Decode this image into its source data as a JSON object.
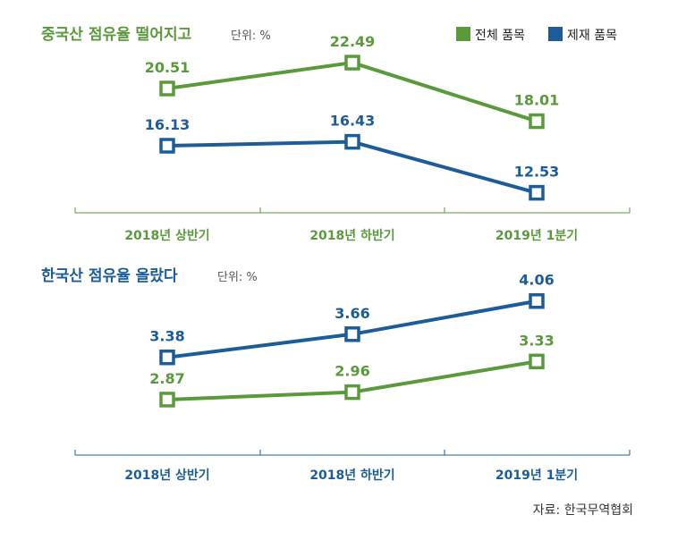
{
  "legend": [
    {
      "label": "전체 품목",
      "color": "#5a9a3c"
    },
    {
      "label": "제재 품목",
      "color": "#1c5d99"
    }
  ],
  "source": "자료: 한국무역협회",
  "chart_data": [
    {
      "type": "line",
      "title": "중국산 점유율 떨어지고",
      "unit_label": "단위: %",
      "title_color": "#5a9a3c",
      "categories": [
        "2018년 상반기",
        "2018년 하반기",
        "2019년 1분기"
      ],
      "category_color": "#5a9a3c",
      "series": [
        {
          "name": "전체 품목",
          "color": "#5a9a3c",
          "values": [
            20.51,
            22.49,
            18.01
          ]
        },
        {
          "name": "제재 품목",
          "color": "#1c5d99",
          "values": [
            16.13,
            16.43,
            12.53
          ]
        }
      ],
      "ylim": [
        11,
        24
      ],
      "grid": false,
      "legend_position": "top-right"
    },
    {
      "type": "line",
      "title": "한국산 점유율 올랐다",
      "unit_label": "단위: %",
      "title_color": "#1c5d99",
      "categories": [
        "2018년 상반기",
        "2018년 하반기",
        "2019년 1분기"
      ],
      "category_color": "#1c5d99",
      "series": [
        {
          "name": "제재 품목",
          "color": "#1c5d99",
          "values": [
            3.38,
            3.66,
            4.06
          ]
        },
        {
          "name": "전체 품목",
          "color": "#5a9a3c",
          "values": [
            2.87,
            2.96,
            3.33
          ]
        }
      ],
      "ylim": [
        2.2,
        4.5
      ],
      "grid": false
    }
  ]
}
